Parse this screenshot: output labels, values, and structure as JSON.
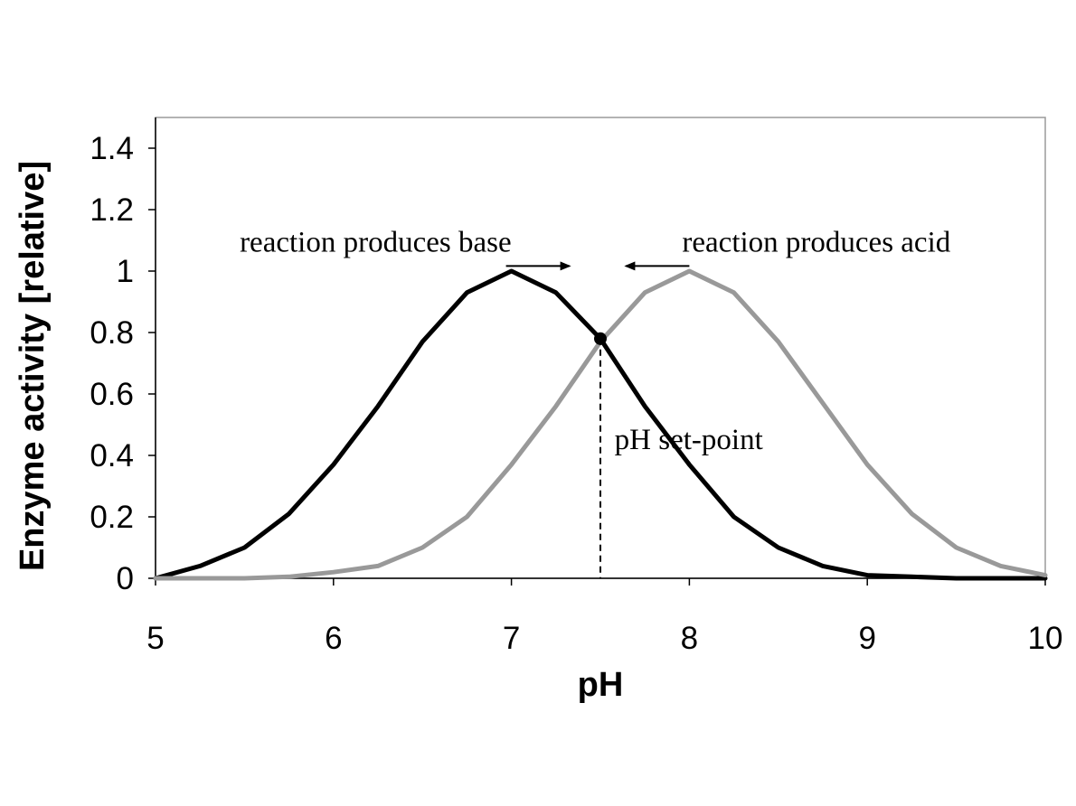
{
  "chart_data": {
    "type": "line",
    "title": "",
    "xlabel": "pH",
    "ylabel": "Enzyme activity [relative]",
    "xlim": [
      5,
      10
    ],
    "ylim": [
      0,
      1.5
    ],
    "xticks": [
      5,
      6,
      7,
      8,
      9,
      10
    ],
    "xtick_labels": [
      "5",
      "6",
      "7",
      "8",
      "9",
      "10"
    ],
    "yticks": [
      0,
      0.2,
      0.4,
      0.6,
      0.8,
      1.0,
      1.2,
      1.4
    ],
    "ytick_labels": [
      "0",
      "0.2",
      "0.4",
      "0.6",
      "0.8",
      "1",
      "1.2",
      "1.4"
    ],
    "grid": false,
    "legend": "none",
    "series": [
      {
        "color": "#000000",
        "x": [
          5.0,
          5.25,
          5.5,
          5.75,
          6.0,
          6.25,
          6.5,
          6.75,
          7.0,
          7.25,
          7.5,
          7.75,
          8.0,
          8.25,
          8.5,
          8.75,
          9.0,
          9.25,
          9.5,
          9.75,
          10.0
        ],
        "y": [
          0.0,
          0.04,
          0.1,
          0.21,
          0.37,
          0.56,
          0.77,
          0.93,
          1.0,
          0.93,
          0.78,
          0.56,
          0.37,
          0.2,
          0.1,
          0.04,
          0.01,
          0.005,
          0.0,
          0.0,
          0.0
        ]
      },
      {
        "color": "#999999",
        "x": [
          5.0,
          5.25,
          5.5,
          5.75,
          6.0,
          6.25,
          6.5,
          6.75,
          7.0,
          7.25,
          7.5,
          7.75,
          8.0,
          8.25,
          8.5,
          8.75,
          9.0,
          9.25,
          9.5,
          9.75,
          10.0
        ],
        "y": [
          0.0,
          0.0,
          0.0,
          0.005,
          0.02,
          0.04,
          0.1,
          0.2,
          0.37,
          0.56,
          0.77,
          0.93,
          1.0,
          0.93,
          0.77,
          0.57,
          0.37,
          0.21,
          0.1,
          0.04,
          0.01
        ]
      }
    ],
    "set_point": {
      "x": 7.5,
      "y": 0.78
    },
    "annotations": [
      {
        "text": "reaction produces base",
        "arrow": "right",
        "x": 7.0,
        "y": 1.04
      },
      {
        "text": "reaction produces acid",
        "arrow": "left",
        "x": 8.0,
        "y": 1.04
      },
      {
        "text": "pH set-point",
        "x": 7.6,
        "y": 0.42
      }
    ]
  }
}
